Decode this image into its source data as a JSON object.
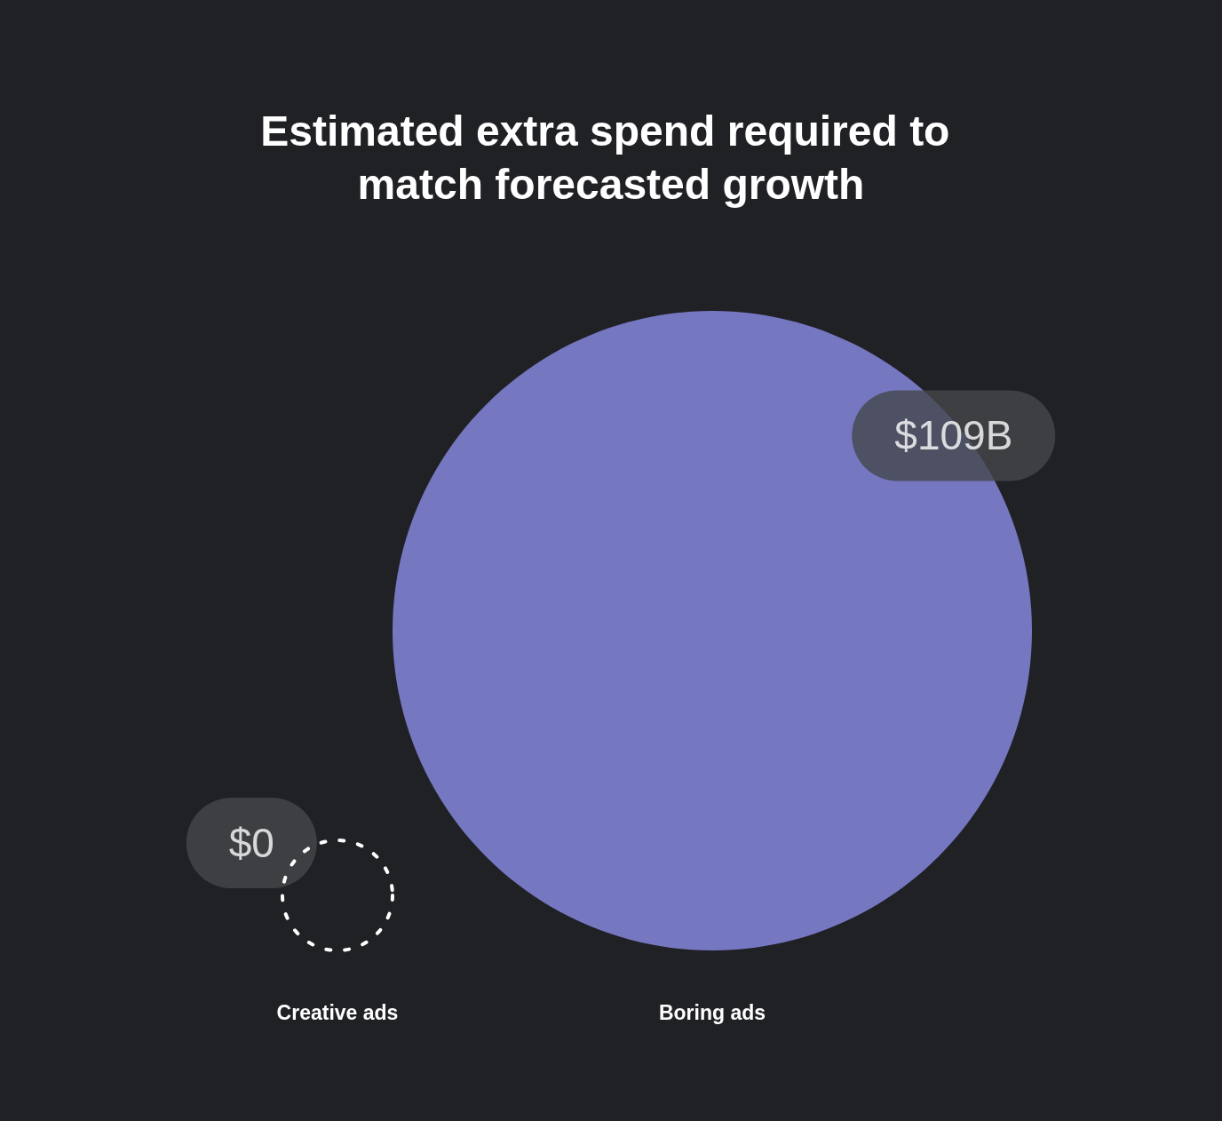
{
  "chart_data": {
    "type": "other",
    "title": "Estimated extra spend required to match forecasted growth",
    "categories": [
      "Creative ads",
      "Boring ads"
    ],
    "values": [
      0,
      109
    ],
    "value_labels": [
      "$0",
      "$109B"
    ]
  }
}
